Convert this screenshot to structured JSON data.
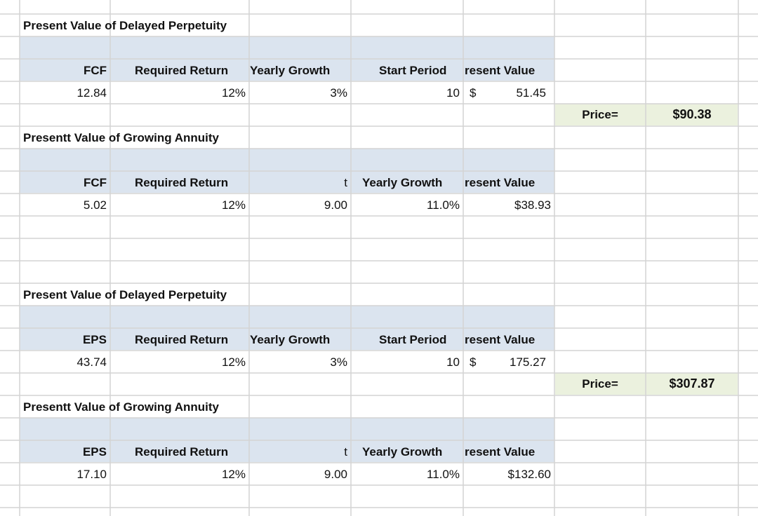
{
  "sections": [
    {
      "title": "Present Value of Delayed Perpetuity",
      "headers": {
        "a": "FCF",
        "b": "Required Return",
        "c": "Yearly Growth",
        "d": "Start Period",
        "e": "resent Value"
      },
      "values": {
        "a": "12.84",
        "b": "12%",
        "c": "3%",
        "d": "10",
        "e_cur": "$",
        "e": "51.45"
      }
    },
    {
      "title": "Presentt Value of Growing Annuity",
      "headers": {
        "a": "FCF",
        "b": "Required Return",
        "c": "t",
        "d": "Yearly Growth",
        "e": "resent Value"
      },
      "values": {
        "a": "5.02",
        "b": "12%",
        "c": "9.00",
        "d": "11.0%",
        "e": "$38.93"
      }
    },
    {
      "title": "Present Value of Delayed Perpetuity",
      "headers": {
        "a": "EPS",
        "b": "Required Return",
        "c": "Yearly Growth",
        "d": "Start Period",
        "e": "resent Value"
      },
      "values": {
        "a": "43.74",
        "b": "12%",
        "c": "3%",
        "d": "10",
        "e_cur": "$",
        "e": "175.27"
      }
    },
    {
      "title": "Presentt Value of Growing Annuity",
      "headers": {
        "a": "EPS",
        "b": "Required Return",
        "c": "t",
        "d": "Yearly Growth",
        "e": "resent Value"
      },
      "values": {
        "a": "17.10",
        "b": "12%",
        "c": "9.00",
        "d": "11.0%",
        "e": "$132.60"
      }
    }
  ],
  "prices": [
    {
      "label": "Price=",
      "value": "$90.38"
    },
    {
      "label": "Price=",
      "value": "$307.87"
    }
  ],
  "colors": {
    "header_band": "#dbe4ef",
    "price_bg": "#ebf1de",
    "gridline": "#d4d4d4"
  }
}
